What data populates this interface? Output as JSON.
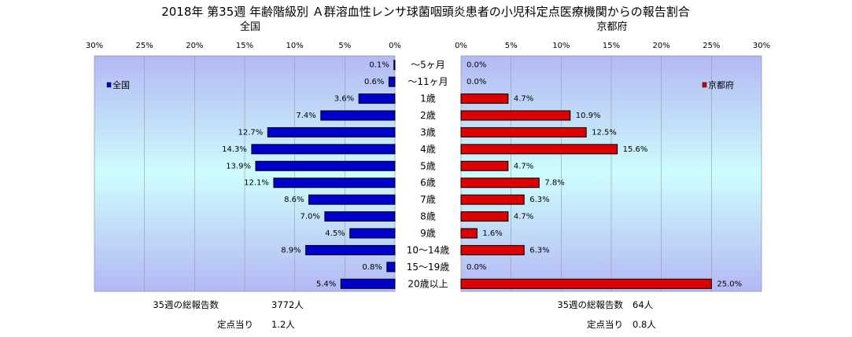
{
  "chart_data": {
    "type": "bar",
    "title": "2018年 第35週 年齢階級別 Ａ群溶血性レンサ球菌咽頭炎患者の小児科定点医療機関からの報告割合",
    "categories": [
      "～5ヶ月",
      "～11ヶ月",
      "1歳",
      "2歳",
      "3歳",
      "4歳",
      "5歳",
      "6歳",
      "7歳",
      "8歳",
      "9歳",
      "10～14歳",
      "15～19歳",
      "20歳以上"
    ],
    "xlim": [
      0,
      30
    ],
    "tick_labels": [
      "0%",
      "5%",
      "10%",
      "15%",
      "20%",
      "25%",
      "30%"
    ],
    "grid": true,
    "panels": [
      {
        "name": "全国",
        "subtitle": "全国",
        "legend_label": "全国",
        "legend_position": "top-left",
        "color": "#0000cc",
        "values": [
          0.1,
          0.6,
          3.6,
          7.4,
          12.7,
          14.3,
          13.9,
          12.1,
          8.6,
          7.0,
          4.5,
          8.9,
          0.8,
          5.4
        ],
        "value_labels": [
          "0.1%",
          "0.6%",
          "3.6%",
          "7.4%",
          "12.7%",
          "14.3%",
          "13.9%",
          "12.1%",
          "8.6%",
          "7.0%",
          "4.5%",
          "8.9%",
          "0.8%",
          "5.4%"
        ]
      },
      {
        "name": "京都府",
        "subtitle": "京都府",
        "legend_label": "京都府",
        "legend_position": "top-right",
        "color": "#dd0000",
        "values": [
          0.0,
          0.0,
          4.7,
          10.9,
          12.5,
          15.6,
          4.7,
          7.8,
          6.3,
          4.7,
          1.6,
          6.3,
          0.0,
          25.0
        ],
        "value_labels": [
          "0.0%",
          "0.0%",
          "4.7%",
          "10.9%",
          "12.5%",
          "15.6%",
          "4.7%",
          "7.8%",
          "6.3%",
          "4.7%",
          "1.6%",
          "6.3%",
          "0.0%",
          "25.0%"
        ]
      }
    ]
  },
  "footer": {
    "national_total_label": "35週の総報告数",
    "national_total_value": "3772人",
    "national_per_label": "定点当り",
    "national_per_value": "1.2人",
    "kyoto_total_label": "35週の総報告数",
    "kyoto_total_value": "64人",
    "kyoto_per_label": "定点当り",
    "kyoto_per_value": "0.8人"
  }
}
